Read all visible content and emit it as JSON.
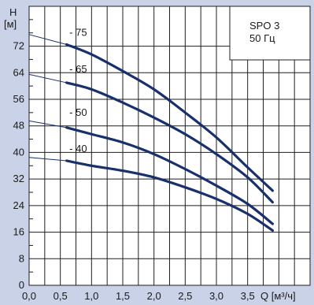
{
  "chart_data": {
    "type": "line",
    "y_axis": {
      "title_line1": "H",
      "title_line2": "[м]",
      "min": 0,
      "max": 84,
      "major_ticks": [
        0,
        8,
        16,
        24,
        32,
        40,
        48,
        56,
        64,
        72
      ],
      "major_tick_labels": [
        "0",
        "8",
        "16",
        "24",
        "32",
        "40",
        "48",
        "56",
        "64",
        "72"
      ],
      "minor_step": 4
    },
    "x_axis": {
      "title": "Q [м³/ч]",
      "min": 0,
      "max": 4.5,
      "ticks": [
        0,
        0.5,
        1,
        1.5,
        2,
        2.5,
        3,
        3.5
      ],
      "tick_labels": [
        "0,0",
        "0,5",
        "1,0",
        "1,5",
        "2,0",
        "2,5",
        "3,0",
        "3,5"
      ],
      "grid_step": 0.25
    },
    "grid": true,
    "legend_box": {
      "line1": "SPO 3",
      "line2": "50 Гц",
      "placement": "top-right"
    },
    "series": [
      {
        "name": "- 75",
        "label_x": 0.62,
        "label_y": 76,
        "thin_points": [
          [
            0,
            75.5
          ],
          [
            0.6,
            72.5
          ]
        ],
        "thick_points": [
          [
            0.6,
            72.5
          ],
          [
            1.0,
            69.5
          ],
          [
            1.5,
            64.5
          ],
          [
            2.0,
            59
          ],
          [
            2.5,
            52
          ],
          [
            3.0,
            44.5
          ],
          [
            3.5,
            35.5
          ],
          [
            3.9,
            28.5
          ]
        ]
      },
      {
        "name": "- 65",
        "label_x": 0.62,
        "label_y": 65,
        "thin_points": [
          [
            0,
            63.5
          ],
          [
            0.6,
            61
          ]
        ],
        "thick_points": [
          [
            0.6,
            61
          ],
          [
            1.0,
            59
          ],
          [
            1.5,
            55
          ],
          [
            2.0,
            50.5
          ],
          [
            2.5,
            45.5
          ],
          [
            3.0,
            39.5
          ],
          [
            3.5,
            32.5
          ],
          [
            3.9,
            25
          ]
        ]
      },
      {
        "name": "- 50",
        "label_x": 0.62,
        "label_y": 52,
        "thin_points": [
          [
            0,
            49.5
          ],
          [
            0.6,
            47.5
          ]
        ],
        "thick_points": [
          [
            0.6,
            47.5
          ],
          [
            1.0,
            45.5
          ],
          [
            1.5,
            43
          ],
          [
            2.0,
            39.5
          ],
          [
            2.5,
            35
          ],
          [
            3.0,
            30
          ],
          [
            3.5,
            24.5
          ],
          [
            3.9,
            18.5
          ]
        ]
      },
      {
        "name": "- 40",
        "label_x": 0.62,
        "label_y": 41,
        "thin_points": [
          [
            0,
            38.5
          ],
          [
            0.6,
            37.5
          ]
        ],
        "thick_points": [
          [
            0.6,
            37.5
          ],
          [
            1.0,
            36
          ],
          [
            1.5,
            34.5
          ],
          [
            2.0,
            32.5
          ],
          [
            2.5,
            29.5
          ],
          [
            3.0,
            26
          ],
          [
            3.5,
            21.5
          ],
          [
            3.9,
            16.5
          ]
        ]
      }
    ],
    "colors": {
      "background": "#c9d2e6",
      "plot_area": "#ffffff",
      "grid": "#1f1f1f",
      "curve": "#18306b",
      "legend_bg": "#ffffff"
    }
  }
}
